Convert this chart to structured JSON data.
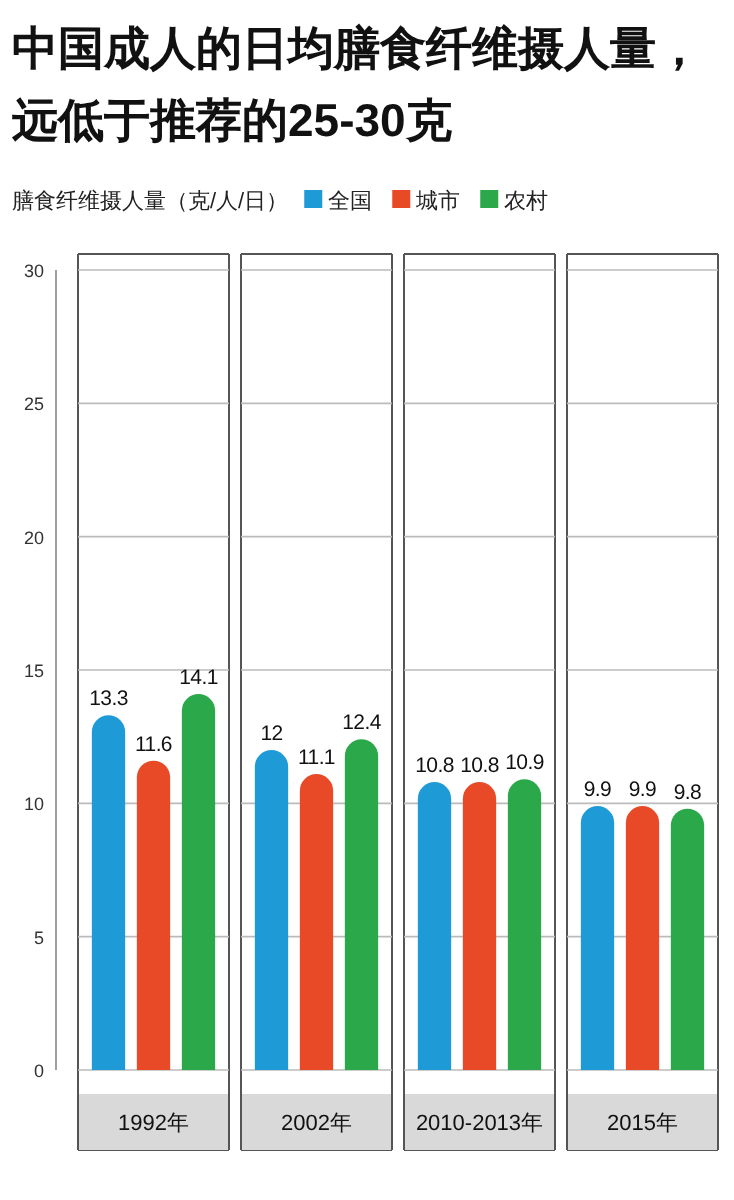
{
  "chart_data": {
    "type": "bar",
    "title": "中国成人的日均膳食纤维摄人量，远低于推荐的25-30克",
    "ylabel": "膳食纤维摄人量（克/人/日）",
    "categories": [
      "1992年",
      "2002年",
      "2010-2013年",
      "2015年"
    ],
    "series": [
      {
        "name": "全国",
        "color": "#1e9bd7",
        "values": [
          13.3,
          12,
          10.8,
          9.9
        ]
      },
      {
        "name": "城市",
        "color": "#e84a27",
        "values": [
          11.6,
          11.1,
          10.8,
          9.9
        ]
      },
      {
        "name": "农村",
        "color": "#2aa84a",
        "values": [
          14.1,
          12.4,
          10.9,
          9.8
        ]
      }
    ],
    "ylim": [
      0,
      30
    ],
    "yticks": [
      0,
      5,
      10,
      15,
      20,
      25,
      30
    ],
    "grid": "y",
    "legend": "top",
    "data_labels": true
  }
}
